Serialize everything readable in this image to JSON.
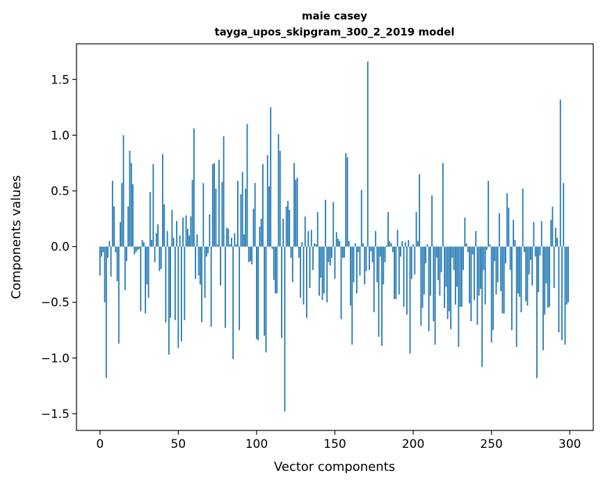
{
  "chart_data": {
    "type": "bar",
    "title_line1": "maie casey",
    "title_line2": "tayga_upos_skipgram_300_2_2019 model",
    "xlabel": "Vector components",
    "ylabel": "Components values",
    "xlim": [
      -15,
      315
    ],
    "ylim": [
      -1.65,
      1.82
    ],
    "xticks": [
      0,
      50,
      100,
      150,
      200,
      250,
      300
    ],
    "xtick_labels": [
      "0",
      "50",
      "100",
      "150",
      "200",
      "250",
      "300"
    ],
    "yticks": [
      -1.5,
      -1.0,
      -0.5,
      0.0,
      0.5,
      1.0,
      1.5
    ],
    "ytick_labels": [
      "−1.5",
      "−1.0",
      "−0.5",
      "0.0",
      "0.5",
      "1.0",
      "1.5"
    ],
    "bar_color": "#1f77b4",
    "values": [
      -0.26,
      -0.09,
      -0.05,
      -0.5,
      -1.18,
      -0.1,
      0.05,
      -0.27,
      0.59,
      0.36,
      -0.05,
      -0.31,
      -0.87,
      0.22,
      0.57,
      1.0,
      -0.39,
      -0.13,
      0.36,
      0.86,
      0.75,
      0.56,
      -0.07,
      -0.05,
      -0.03,
      -0.02,
      -0.58,
      0.06,
      0.04,
      -0.6,
      -0.34,
      -0.46,
      0.49,
      0.06,
      0.74,
      -0.14,
      0.12,
      0.2,
      -0.22,
      -0.2,
      0.83,
      0.38,
      -0.68,
      0.14,
      -0.97,
      -0.64,
      0.33,
      0.08,
      -0.66,
      0.23,
      -0.91,
      0.1,
      -0.85,
      0.26,
      -0.66,
      0.28,
      0.16,
      0.1,
      0.27,
      0.6,
      1.06,
      -0.29,
      0.11,
      -0.26,
      -0.34,
      -0.68,
      0.57,
      -0.46,
      -0.09,
      -0.06,
      0.29,
      -0.72,
      0.74,
      0.75,
      0.52,
      0.02,
      0.78,
      -0.35,
      0.58,
      0.99,
      -0.73,
      0.17,
      0.16,
      0.02,
      0.08,
      -1.01,
      0.12,
      0.02,
      0.59,
      -0.75,
      0.47,
      0.67,
      0.11,
      0.52,
      1.1,
      -0.14,
      -0.13,
      -0.16,
      0.34,
      0.57,
      -0.83,
      -0.84,
      0.18,
      0.25,
      0.74,
      -0.8,
      -0.95,
      0.82,
      0.54,
      1.25,
      -0.02,
      -0.3,
      -0.42,
      -0.42,
      1.01,
      0.86,
      -0.82,
      0.25,
      -1.48,
      0.36,
      0.41,
      0.33,
      -0.1,
      -0.32,
      0.75,
      0.6,
      0.62,
      -0.1,
      -0.46,
      0.04,
      -0.52,
      0.27,
      -0.64,
      0.14,
      -0.37,
      0.15,
      -0.21,
      0.03,
      0.02,
      0.31,
      -0.44,
      -0.28,
      -0.48,
      -0.42,
      0.42,
      -0.5,
      -0.14,
      -0.17,
      -0.1,
      0.4,
      -0.29,
      0.13,
      0.07,
      0.05,
      -0.65,
      -0.1,
      -0.1,
      0.84,
      0.8,
      0.05,
      -0.53,
      -0.88,
      -0.32,
      0.03,
      -0.42,
      -0.05,
      -0.26,
      0.51,
      0.03,
      -0.34,
      -0.22,
      1.66,
      -0.21,
      -0.04,
      -0.14,
      -0.59,
      0.14,
      -0.32,
      -0.81,
      -0.09,
      -0.89,
      -0.34,
      -0.14,
      0.01,
      0.31,
      0.05,
      0.03,
      -0.05,
      -0.47,
      -0.47,
      0.15,
      -0.43,
      -0.09,
      0.05,
      -0.54,
      0.04,
      -0.61,
      0.06,
      -0.96,
      -0.29,
      0.02,
      -0.25,
      0.31,
      0.05,
      0.65,
      -0.71,
      -0.55,
      -0.43,
      -0.15,
      0.02,
      -0.76,
      -0.44,
      0.46,
      -0.67,
      -0.88,
      -0.1,
      -0.3,
      -0.44,
      -0.23,
      0.75,
      -0.55,
      -0.36,
      -0.65,
      -0.58,
      -0.74,
      -0.1,
      -0.21,
      -0.52,
      -0.36,
      -0.9,
      -0.54,
      -0.54,
      -0.21,
      0.26,
      0.03,
      -0.05,
      -0.51,
      -0.67,
      -0.07,
      -0.48,
      0.14,
      -0.7,
      -0.44,
      -0.38,
      -1.08,
      -0.21,
      -0.52,
      -0.03,
      0.59,
      0.02,
      -0.86,
      -0.75,
      -0.13,
      -0.43,
      -0.32,
      0.3,
      -0.4,
      -0.6,
      -0.6,
      -0.15,
      0.48,
      0.35,
      -0.21,
      -0.75,
      0.24,
      0.06,
      -0.9,
      -0.42,
      -0.45,
      -0.59,
      0.52,
      -0.05,
      -0.49,
      -0.53,
      -0.25,
      -0.12,
      -0.35,
      0.22,
      -0.09,
      -1.18,
      -0.41,
      -0.08,
      0.23,
      -0.93,
      -0.61,
      -0.33,
      -0.55,
      -0.54,
      0.24,
      0.36,
      -0.37,
      0.17,
      0.08,
      -0.77,
      1.32,
      -0.84,
      0.57,
      -0.88,
      -0.52,
      -0.5
    ]
  }
}
